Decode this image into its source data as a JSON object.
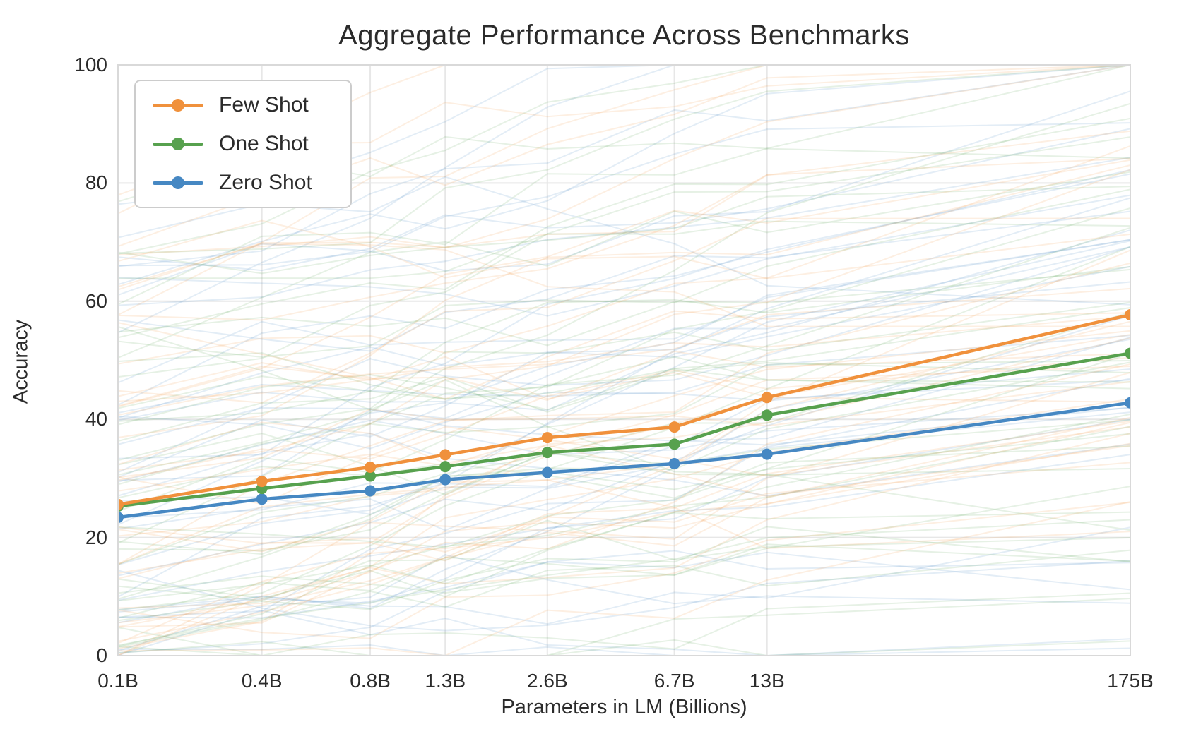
{
  "figure": {
    "title": "Aggregate Performance Across Benchmarks",
    "xlabel": "Parameters in LM (Billions)",
    "ylabel": "Accuracy"
  },
  "legend": {
    "position": "upper-left",
    "entries": [
      {
        "label": "Few Shot",
        "color": "#f0913c"
      },
      {
        "label": "One Shot",
        "color": "#57a14e"
      },
      {
        "label": "Zero Shot",
        "color": "#4688c3"
      }
    ]
  },
  "chart_data": {
    "type": "line",
    "title": "Aggregate Performance Across Benchmarks",
    "xlabel": "Parameters in LM (Billions)",
    "ylabel": "Accuracy",
    "x_scale": "log",
    "categories": [
      "0.1B",
      "0.4B",
      "0.8B",
      "1.3B",
      "2.6B",
      "6.7B",
      "13B",
      "175B"
    ],
    "x_values_billions": [
      0.125,
      0.35,
      0.76,
      1.3,
      2.7,
      6.7,
      13,
      175
    ],
    "ylim": [
      0,
      100
    ],
    "yticks": [
      0,
      20,
      40,
      60,
      80,
      100
    ],
    "grid": true,
    "series": [
      {
        "name": "Zero Shot",
        "color": "#4688c3",
        "values": [
          23.4,
          26.5,
          27.9,
          29.8,
          31.0,
          32.5,
          34.1,
          42.8
        ]
      },
      {
        "name": "One Shot",
        "color": "#57a14e",
        "values": [
          25.3,
          28.3,
          30.4,
          32.0,
          34.4,
          35.8,
          40.7,
          51.2
        ]
      },
      {
        "name": "Few Shot",
        "color": "#f0913c",
        "values": [
          25.6,
          29.5,
          31.9,
          34.0,
          36.9,
          38.7,
          43.7,
          57.7
        ]
      }
    ],
    "background_series": {
      "description": "faint individual benchmark curves, one set per shot-type color",
      "colors": [
        "#4688c3",
        "#57a14e",
        "#f0913c"
      ],
      "count_per_color": 42,
      "opacity": 0.15,
      "stroke_width": 2,
      "seed": 42
    },
    "style": {
      "grid_color": "#e7e7e7",
      "border_color": "#d9d9d9",
      "text_color": "#262626",
      "marker_radius": 8,
      "line_width": 4.5
    }
  }
}
